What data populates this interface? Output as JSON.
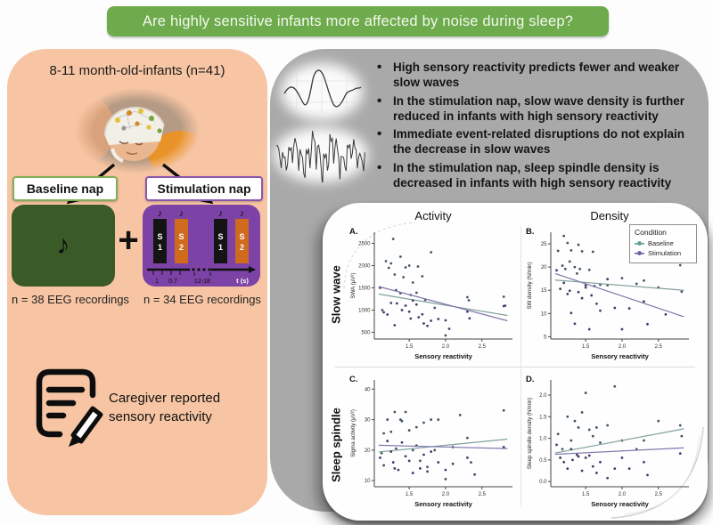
{
  "banner": {
    "title": "Are highly sensitive infants more affected by noise during sleep?",
    "bg_color": "#6DAB4C"
  },
  "left_panel": {
    "bg_color": "#F7C5A3",
    "heading": "8-11 month-old-infants (n=41)",
    "baseline_nap": {
      "label": "Baseline nap",
      "n_label": "n = 38 EEG recordings",
      "note_icon": "♪",
      "box_color": "#3A5B28",
      "border_color": "#7fae58"
    },
    "plus_sign": "+",
    "stimulation_nap": {
      "label": "Stimulation nap",
      "n_label": "n = 34 EEG recordings",
      "note_icon": "♪",
      "box_color": "#7C42A5",
      "border_color": "#8A56AD",
      "bars": [
        {
          "line1": "S",
          "line2": "1",
          "color": "#141414"
        },
        {
          "line1": "S",
          "line2": "2",
          "color": "#D06B1E"
        },
        {
          "line1": "S",
          "line2": "1",
          "color": "#141414"
        },
        {
          "line1": "S",
          "line2": "2",
          "color": "#D06B1E"
        }
      ],
      "timeline": {
        "interval_1": "1",
        "interval_2": "0.7",
        "gap_label": "12-18",
        "axis_label": "t (s)"
      }
    },
    "caregiver": {
      "text": "Caregiver reported sensory reactivity"
    }
  },
  "findings_panel": {
    "bg_color": "#A9A9A9",
    "bullets": [
      "High sensory reactivity predicts fewer and weaker slow waves",
      "In the stimulation nap, slow wave density is further reduced in infants with high sensory reactivity",
      "Immediate event-related disruptions do not explain the decrease in slow waves",
      "In the stimulation nap, sleep spindle density is decreased in infants with high sensory reactivity"
    ]
  },
  "figure_panel": {
    "col_headers": [
      "Activity",
      "Density"
    ],
    "row_labels": [
      "Slow wave",
      "Sleep spindle"
    ],
    "legend": {
      "title": "Condition",
      "items": [
        {
          "label": "Baseline",
          "color": "#5F9E97"
        },
        {
          "label": "Stimulation",
          "color": "#6F5FA7"
        }
      ]
    }
  },
  "chart_data": [
    {
      "id": "A.",
      "type": "scatter",
      "row": "Slow wave",
      "column": "Activity",
      "xlabel": "Sensory reactivity",
      "ylabel": "SWA (µV²)",
      "xlim": [
        1.02,
        2.92
      ],
      "ylim": [
        350,
        2750
      ],
      "xticks": [
        [
          1.5,
          "1.5"
        ],
        [
          2.0,
          "2.0"
        ],
        [
          2.5,
          "2.5"
        ]
      ],
      "yticks": [
        [
          500,
          "500"
        ],
        [
          1000,
          "1000"
        ],
        [
          1500,
          "1500"
        ],
        [
          2000,
          "2000"
        ],
        [
          2500,
          "2500"
        ]
      ],
      "series": [
        {
          "name": "Baseline",
          "line_color": "#7FA09A",
          "point_color": "#41556A",
          "trend": [
            [
              1.08,
              1360
            ],
            [
              2.85,
              880
            ]
          ],
          "points": [
            [
              1.13,
              1000
            ],
            [
              1.18,
              2100
            ],
            [
              1.22,
              1950
            ],
            [
              1.25,
              2050
            ],
            [
              1.28,
              2600
            ],
            [
              1.3,
              1800
            ],
            [
              1.32,
              1450
            ],
            [
              1.38,
              2200
            ],
            [
              1.42,
              1740
            ],
            [
              1.45,
              1960
            ],
            [
              1.5,
              2000
            ],
            [
              1.52,
              1340
            ],
            [
              1.55,
              1620
            ],
            [
              1.6,
              1390
            ],
            [
              1.62,
              1980
            ],
            [
              1.68,
              1760
            ],
            [
              1.72,
              1230
            ],
            [
              1.8,
              2300
            ],
            [
              1.85,
              1050
            ],
            [
              2.0,
              430
            ],
            [
              2.3,
              1290
            ],
            [
              2.32,
              1220
            ],
            [
              2.8,
              1300
            ],
            [
              2.82,
              1100
            ]
          ]
        },
        {
          "name": "Stimulation",
          "line_color": "#7F76AD",
          "point_color": "#453C6B",
          "trend": [
            [
              1.08,
              1530
            ],
            [
              2.85,
              760
            ]
          ],
          "points": [
            [
              1.1,
              1500
            ],
            [
              1.15,
              950
            ],
            [
              1.2,
              900
            ],
            [
              1.25,
              1160
            ],
            [
              1.3,
              660
            ],
            [
              1.33,
              1150
            ],
            [
              1.38,
              1380
            ],
            [
              1.4,
              1000
            ],
            [
              1.45,
              1100
            ],
            [
              1.5,
              965
            ],
            [
              1.52,
              810
            ],
            [
              1.55,
              1215
            ],
            [
              1.6,
              1125
            ],
            [
              1.63,
              840
            ],
            [
              1.68,
              905
            ],
            [
              1.7,
              700
            ],
            [
              1.75,
              645
            ],
            [
              1.8,
              760
            ],
            [
              1.9,
              800
            ],
            [
              2.0,
              770
            ],
            [
              2.05,
              580
            ],
            [
              2.3,
              965
            ],
            [
              2.33,
              815
            ],
            [
              2.8,
              1090
            ]
          ]
        }
      ]
    },
    {
      "id": "B.",
      "type": "scatter",
      "row": "Slow wave",
      "column": "Density",
      "xlabel": "Sensory reactivity",
      "ylabel": "SW density (N/min)",
      "xlim": [
        1.02,
        2.92
      ],
      "ylim": [
        4.5,
        27.5
      ],
      "xticks": [
        [
          1.5,
          "1.5"
        ],
        [
          2.0,
          "2.0"
        ],
        [
          2.5,
          "2.5"
        ]
      ],
      "yticks": [
        [
          5,
          "5"
        ],
        [
          10,
          "10"
        ],
        [
          15,
          "15"
        ],
        [
          20,
          "20"
        ],
        [
          25,
          "25"
        ]
      ],
      "series": [
        {
          "name": "Baseline",
          "line_color": "#7FA09A",
          "point_color": "#41556A",
          "trend": [
            [
              1.08,
              17.2
            ],
            [
              2.85,
              15.0
            ]
          ],
          "points": [
            [
              1.12,
              23.5
            ],
            [
              1.18,
              20.3
            ],
            [
              1.2,
              26.7
            ],
            [
              1.22,
              19.6
            ],
            [
              1.25,
              25.2
            ],
            [
              1.28,
              21.2
            ],
            [
              1.3,
              23.6
            ],
            [
              1.35,
              20.0
            ],
            [
              1.38,
              18.6
            ],
            [
              1.4,
              24.8
            ],
            [
              1.42,
              19.6
            ],
            [
              1.45,
              23.4
            ],
            [
              1.5,
              15.6
            ],
            [
              1.55,
              19.4
            ],
            [
              1.6,
              23.3
            ],
            [
              1.62,
              15.9
            ],
            [
              1.7,
              16.2
            ],
            [
              1.8,
              16.1
            ],
            [
              2.0,
              17.6
            ],
            [
              2.2,
              16.4
            ],
            [
              2.3,
              17.1
            ],
            [
              2.5,
              15.6
            ],
            [
              2.8,
              20.4
            ],
            [
              2.82,
              14.7
            ]
          ]
        },
        {
          "name": "Stimulation",
          "line_color": "#7F76AD",
          "point_color": "#453C6B",
          "trend": [
            [
              1.08,
              18.6
            ],
            [
              2.85,
              9.3
            ]
          ],
          "points": [
            [
              1.1,
              19.3
            ],
            [
              1.15,
              15.3
            ],
            [
              1.2,
              16.6
            ],
            [
              1.25,
              14.2
            ],
            [
              1.28,
              14.9
            ],
            [
              1.3,
              10.1
            ],
            [
              1.35,
              7.8
            ],
            [
              1.4,
              14.6
            ],
            [
              1.45,
              13.3
            ],
            [
              1.5,
              16.1
            ],
            [
              1.55,
              6.6
            ],
            [
              1.58,
              13.9
            ],
            [
              1.65,
              12.1
            ],
            [
              1.7,
              10.6
            ],
            [
              1.8,
              17.4
            ],
            [
              1.9,
              11.2
            ],
            [
              2.0,
              6.6
            ],
            [
              2.1,
              11.1
            ],
            [
              2.3,
              12.6
            ],
            [
              2.35,
              7.7
            ],
            [
              2.6,
              9.8
            ]
          ]
        }
      ]
    },
    {
      "id": "C.",
      "type": "scatter",
      "row": "Sleep spindle",
      "column": "Activity",
      "xlabel": "Sensory reactivity",
      "ylabel": "Sigma activity (µV²)",
      "xlim": [
        1.02,
        2.92
      ],
      "ylim": [
        8,
        43
      ],
      "xticks": [
        [
          1.5,
          "1.5"
        ],
        [
          2.0,
          "2.0"
        ],
        [
          2.5,
          "2.5"
        ]
      ],
      "yticks": [
        [
          10,
          "10"
        ],
        [
          20,
          "20"
        ],
        [
          30,
          "30"
        ],
        [
          40,
          "40"
        ]
      ],
      "series": [
        {
          "name": "Baseline",
          "line_color": "#7FA09A",
          "point_color": "#41556A",
          "trend": [
            [
              1.08,
              19.4
            ],
            [
              2.85,
              23.6
            ]
          ],
          "points": [
            [
              1.12,
              19.0
            ],
            [
              1.15,
              25.5
            ],
            [
              1.2,
              30.0
            ],
            [
              1.25,
              26.0
            ],
            [
              1.3,
              32.5
            ],
            [
              1.32,
              20.5
            ],
            [
              1.38,
              30.0
            ],
            [
              1.4,
              29.5
            ],
            [
              1.45,
              32.5
            ],
            [
              1.5,
              26.5
            ],
            [
              1.55,
              20.0
            ],
            [
              1.6,
              27.5
            ],
            [
              1.65,
              16.5
            ],
            [
              1.7,
              29.0
            ],
            [
              1.75,
              14.5
            ],
            [
              1.8,
              30.0
            ],
            [
              1.85,
              20.0
            ],
            [
              1.9,
              30.0
            ],
            [
              2.0,
              10.5
            ],
            [
              2.1,
              21.0
            ],
            [
              2.2,
              31.5
            ],
            [
              2.3,
              24.0
            ],
            [
              2.35,
              16.0
            ],
            [
              2.8,
              33.0
            ]
          ]
        },
        {
          "name": "Stimulation",
          "line_color": "#7F76AD",
          "point_color": "#453C6B",
          "trend": [
            [
              1.08,
              21.6
            ],
            [
              2.85,
              20.5
            ]
          ],
          "points": [
            [
              1.1,
              17.5
            ],
            [
              1.15,
              15.0
            ],
            [
              1.2,
              23.0
            ],
            [
              1.25,
              19.5
            ],
            [
              1.28,
              16.0
            ],
            [
              1.3,
              14.0
            ],
            [
              1.35,
              13.5
            ],
            [
              1.4,
              22.5
            ],
            [
              1.45,
              18.0
            ],
            [
              1.5,
              16.5
            ],
            [
              1.55,
              12.5
            ],
            [
              1.6,
              21.5
            ],
            [
              1.65,
              14.0
            ],
            [
              1.7,
              18.5
            ],
            [
              1.75,
              13.0
            ],
            [
              1.8,
              19.5
            ],
            [
              1.9,
              16.0
            ],
            [
              2.0,
              13.5
            ],
            [
              2.1,
              15.5
            ],
            [
              2.3,
              17.5
            ],
            [
              2.4,
              12.0
            ],
            [
              2.8,
              21.0
            ]
          ]
        }
      ]
    },
    {
      "id": "D.",
      "type": "scatter",
      "row": "Sleep spindle",
      "column": "Density",
      "xlabel": "Sensory reactivity",
      "ylabel": "Sleep spindle density (N/min)",
      "xlim": [
        1.02,
        2.92
      ],
      "ylim": [
        -0.12,
        2.35
      ],
      "xticks": [
        [
          1.5,
          "1.5"
        ],
        [
          2.0,
          "2.0"
        ],
        [
          2.5,
          "2.5"
        ]
      ],
      "yticks": [
        [
          0.0,
          "0.0"
        ],
        [
          0.5,
          "0.5"
        ],
        [
          1.0,
          "1.0"
        ],
        [
          1.5,
          "1.5"
        ],
        [
          2.0,
          "2.0"
        ]
      ],
      "series": [
        {
          "name": "Baseline",
          "line_color": "#7FA09A",
          "point_color": "#41556A",
          "trend": [
            [
              1.08,
              0.66
            ],
            [
              2.85,
              1.22
            ]
          ],
          "points": [
            [
              1.12,
              1.1
            ],
            [
              1.18,
              0.75
            ],
            [
              1.25,
              1.5
            ],
            [
              1.3,
              0.95
            ],
            [
              1.35,
              1.4
            ],
            [
              1.4,
              1.25
            ],
            [
              1.45,
              1.6
            ],
            [
              1.5,
              2.05
            ],
            [
              1.55,
              1.2
            ],
            [
              1.6,
              1.05
            ],
            [
              1.65,
              1.25
            ],
            [
              1.7,
              0.9
            ],
            [
              1.8,
              1.3
            ],
            [
              1.9,
              2.2
            ],
            [
              2.0,
              0.95
            ],
            [
              2.2,
              0.75
            ],
            [
              2.3,
              0.95
            ],
            [
              2.5,
              1.4
            ],
            [
              2.8,
              1.3
            ],
            [
              2.82,
              1.05
            ]
          ]
        },
        {
          "name": "Stimulation",
          "line_color": "#7F76AD",
          "point_color": "#453C6B",
          "trend": [
            [
              1.08,
              0.63
            ],
            [
              2.85,
              0.78
            ]
          ],
          "points": [
            [
              1.1,
              0.85
            ],
            [
              1.15,
              0.55
            ],
            [
              1.2,
              0.45
            ],
            [
              1.25,
              0.3
            ],
            [
              1.3,
              0.75
            ],
            [
              1.32,
              0.5
            ],
            [
              1.38,
              0.62
            ],
            [
              1.4,
              0.58
            ],
            [
              1.45,
              0.25
            ],
            [
              1.5,
              0.55
            ],
            [
              1.55,
              0.6
            ],
            [
              1.6,
              0.35
            ],
            [
              1.65,
              0.2
            ],
            [
              1.7,
              0.45
            ],
            [
              1.8,
              0.08
            ],
            [
              1.9,
              0.3
            ],
            [
              2.0,
              0.55
            ],
            [
              2.1,
              0.3
            ],
            [
              2.3,
              0.45
            ],
            [
              2.35,
              0.15
            ],
            [
              2.8,
              0.65
            ]
          ]
        }
      ]
    }
  ]
}
